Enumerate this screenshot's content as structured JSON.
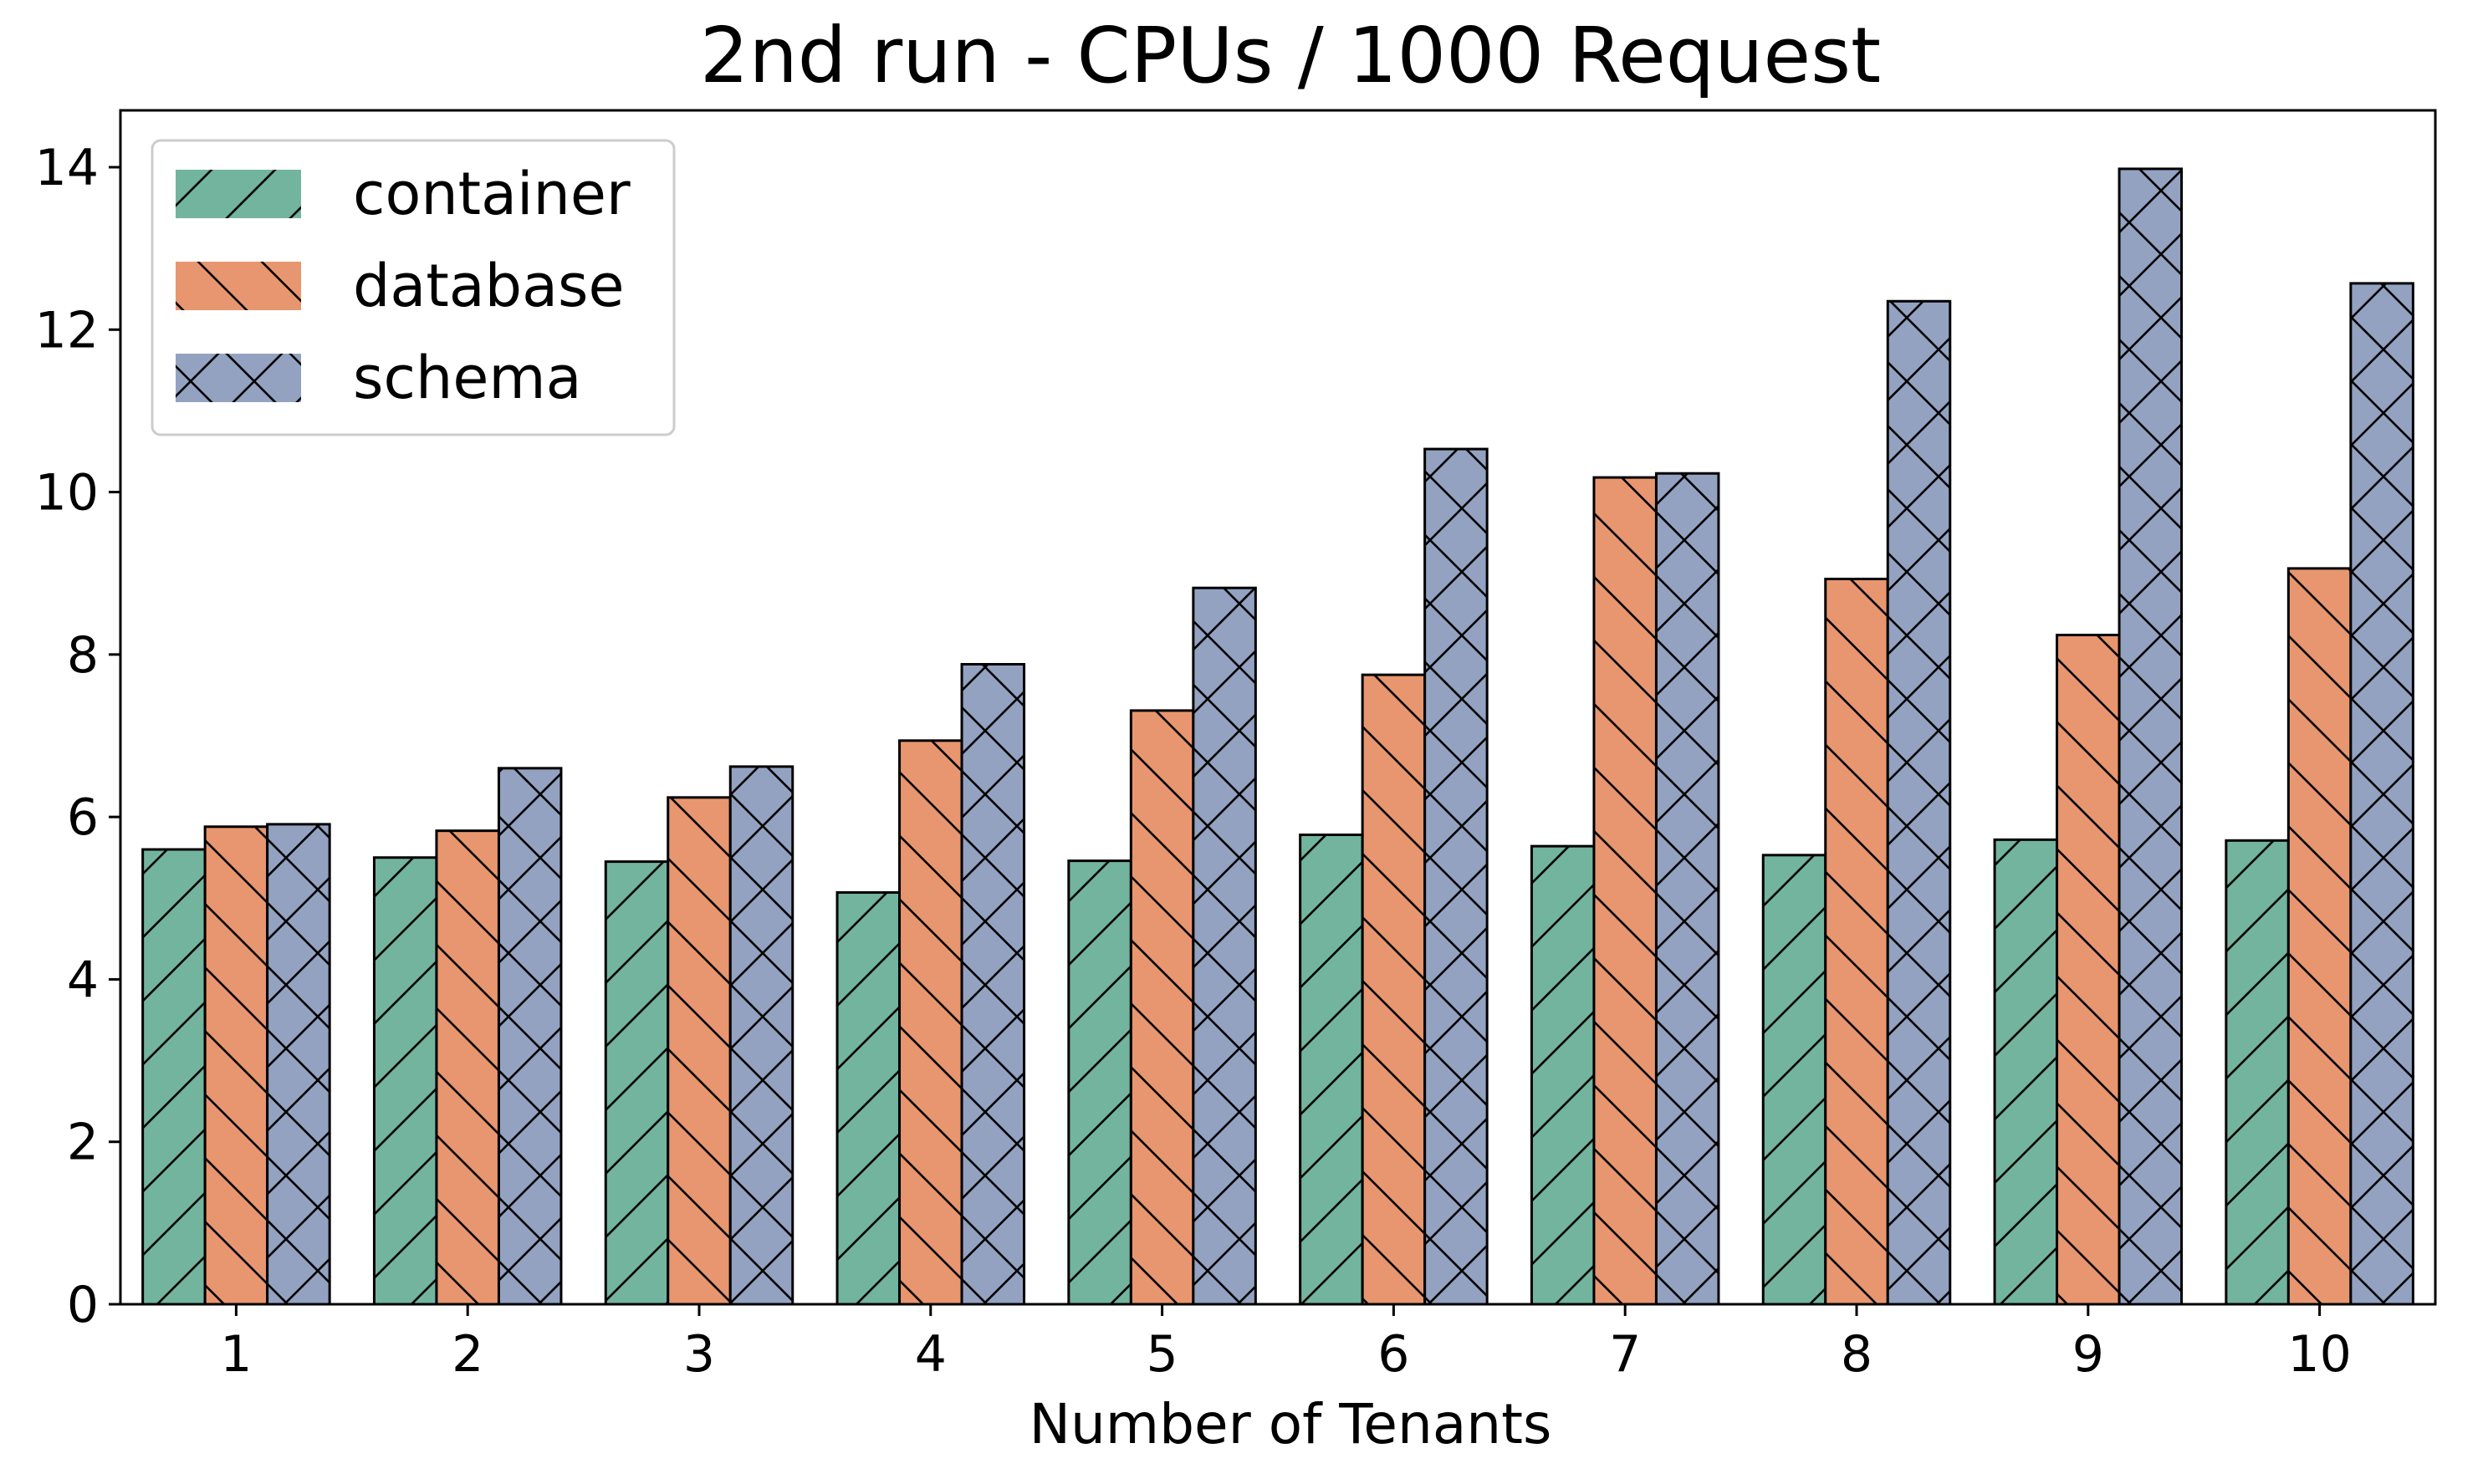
{
  "chart_data": {
    "type": "bar",
    "title": "2nd run - CPUs / 1000 Request",
    "xlabel": "Number of Tenants",
    "ylabel": "",
    "categories": [
      "1",
      "2",
      "3",
      "4",
      "5",
      "6",
      "7",
      "8",
      "9",
      "10"
    ],
    "ylim": [
      0,
      14.7
    ],
    "yticks": [
      "0",
      "2",
      "4",
      "6",
      "8",
      "10",
      "12",
      "14"
    ],
    "grid": false,
    "legend_position": "top-left",
    "series": [
      {
        "name": "container",
        "color": "#73b49e",
        "hatch": "forward-diagonal",
        "values": [
          5.6,
          5.5,
          5.45,
          5.07,
          5.46,
          5.78,
          5.64,
          5.53,
          5.72,
          5.71
        ]
      },
      {
        "name": "database",
        "color": "#e8966f",
        "hatch": "back-diagonal",
        "values": [
          5.88,
          5.83,
          6.24,
          6.94,
          7.31,
          7.75,
          10.18,
          8.93,
          8.24,
          9.06
        ]
      },
      {
        "name": "schema",
        "color": "#94a2c1",
        "hatch": "cross",
        "values": [
          5.91,
          6.6,
          6.62,
          7.88,
          8.82,
          10.53,
          10.23,
          12.35,
          13.98,
          12.57
        ]
      }
    ]
  }
}
